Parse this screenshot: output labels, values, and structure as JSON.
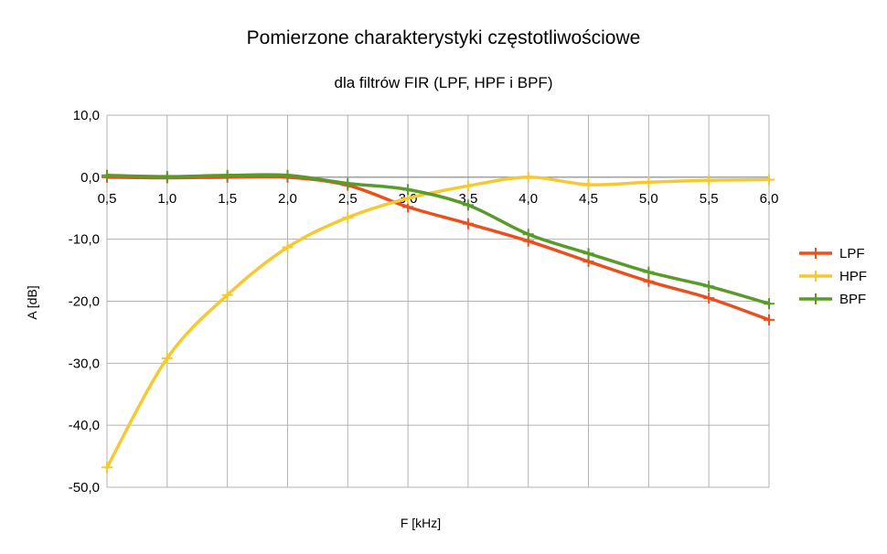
{
  "chart_data": {
    "type": "line",
    "title": "Pomierzone charakterystyki częstotliwościowe",
    "subtitle": "dla filtrów FIR (LPF, HPF i BPF)",
    "xlabel": "F [kHz]",
    "ylabel": "A [dB]",
    "x": [
      0.5,
      1.0,
      1.5,
      2.0,
      2.5,
      3.0,
      3.5,
      4.0,
      4.5,
      5.0,
      5.5,
      6.0
    ],
    "xticks": [
      "0,5",
      "1,0",
      "1,5",
      "2,0",
      "2,5",
      "3,0",
      "3,5",
      "4,0",
      "4,5",
      "5,0",
      "5,5",
      "6,0"
    ],
    "yticks": [
      "10,0",
      "0,0",
      "-10,0",
      "-20,0",
      "-30,0",
      "-40,0",
      "-50,0"
    ],
    "ytick_values": [
      10,
      0,
      -10,
      -20,
      -30,
      -40,
      -50
    ],
    "xlim": [
      0.5,
      6.0
    ],
    "ylim": [
      -50,
      10
    ],
    "grid": true,
    "legend_position": "right",
    "series": [
      {
        "name": "LPF",
        "color": "#e8501e",
        "values": [
          0.0,
          -0.1,
          0.0,
          0.0,
          -1.3,
          -4.8,
          -7.5,
          -10.3,
          -13.6,
          -16.8,
          -19.5,
          -23.0
        ]
      },
      {
        "name": "HPF",
        "color": "#f5c932",
        "values": [
          -46.8,
          -29.2,
          -19.0,
          -11.3,
          -6.5,
          -3.4,
          -1.4,
          0.0,
          -1.2,
          -0.8,
          -0.5,
          -0.4
        ]
      },
      {
        "name": "BPF",
        "color": "#5a9a2a",
        "values": [
          0.3,
          0.1,
          0.3,
          0.3,
          -1.0,
          -2.0,
          -4.5,
          -9.2,
          -12.3,
          -15.3,
          -17.6,
          -20.4
        ]
      }
    ]
  }
}
